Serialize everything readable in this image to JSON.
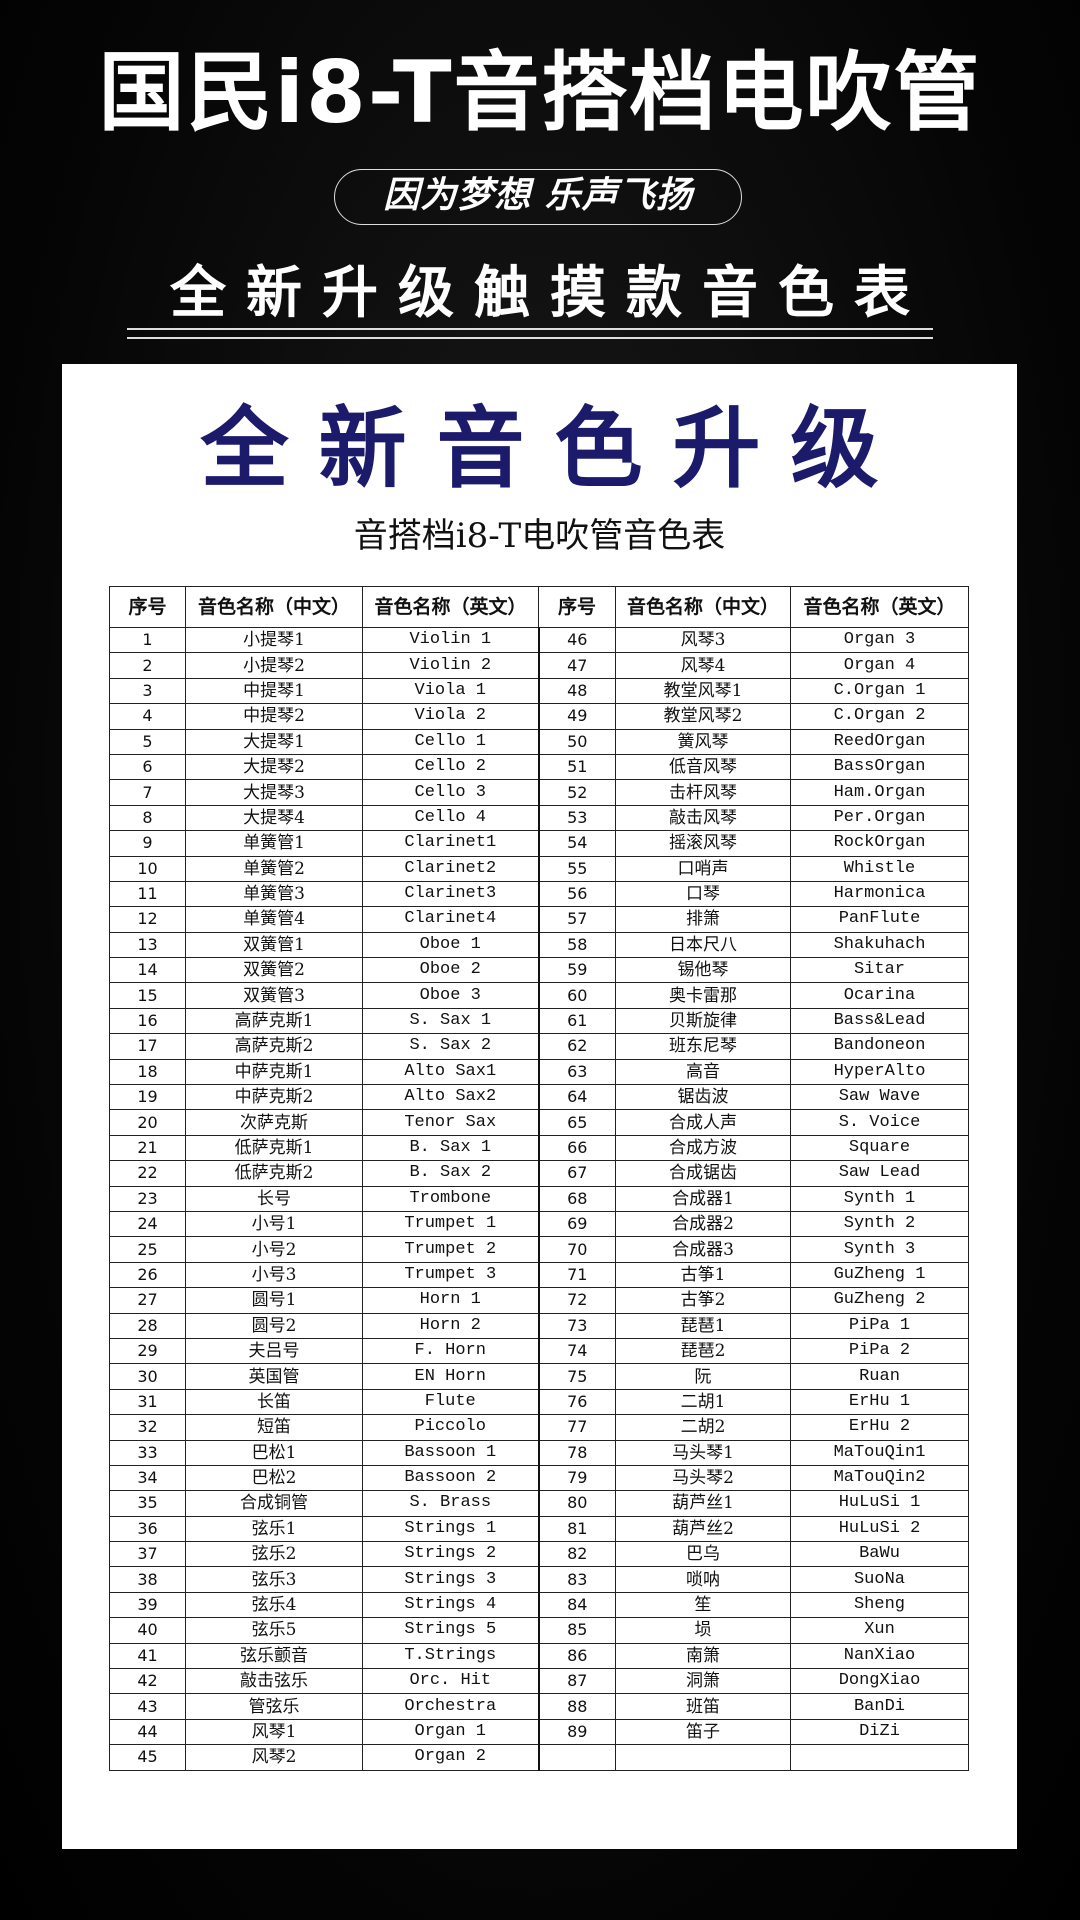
{
  "header": {
    "title": "国民i8-T音搭档电吹管",
    "slogan": "因为梦想  乐声飞扬",
    "subtitle": "全新升级触摸款音色表"
  },
  "panel": {
    "headline": "全新音色升级",
    "table_title": "音搭档i8-T电吹管音色表",
    "headline_color": "#1b1a6b"
  },
  "table": {
    "headers": [
      "序号",
      "音色名称（中文）",
      "音色名称（英文）",
      "序号",
      "音色名称（中文）",
      "音色名称（英文）"
    ]
  },
  "voices": [
    [
      "1",
      "小提琴1",
      "Violin 1"
    ],
    [
      "2",
      "小提琴2",
      "Violin 2"
    ],
    [
      "3",
      "中提琴1",
      "Viola 1"
    ],
    [
      "4",
      "中提琴2",
      "Viola 2"
    ],
    [
      "5",
      "大提琴1",
      "Cello 1"
    ],
    [
      "6",
      "大提琴2",
      "Cello 2"
    ],
    [
      "7",
      "大提琴3",
      "Cello 3"
    ],
    [
      "8",
      "大提琴4",
      "Cello 4"
    ],
    [
      "9",
      "单簧管1",
      "Clarinet1"
    ],
    [
      "10",
      "单簧管2",
      "Clarinet2"
    ],
    [
      "11",
      "单簧管3",
      "Clarinet3"
    ],
    [
      "12",
      "单簧管4",
      "Clarinet4"
    ],
    [
      "13",
      "双簧管1",
      "Oboe 1"
    ],
    [
      "14",
      "双簧管2",
      "Oboe 2"
    ],
    [
      "15",
      "双簧管3",
      "Oboe 3"
    ],
    [
      "16",
      "高萨克斯1",
      "S. Sax 1"
    ],
    [
      "17",
      "高萨克斯2",
      "S. Sax 2"
    ],
    [
      "18",
      "中萨克斯1",
      "Alto Sax1"
    ],
    [
      "19",
      "中萨克斯2",
      "Alto Sax2"
    ],
    [
      "20",
      "次萨克斯",
      "Tenor Sax"
    ],
    [
      "21",
      "低萨克斯1",
      "B. Sax 1"
    ],
    [
      "22",
      "低萨克斯2",
      "B. Sax 2"
    ],
    [
      "23",
      "长号",
      "Trombone"
    ],
    [
      "24",
      "小号1",
      "Trumpet 1"
    ],
    [
      "25",
      "小号2",
      "Trumpet 2"
    ],
    [
      "26",
      "小号3",
      "Trumpet 3"
    ],
    [
      "27",
      "圆号1",
      "Horn 1"
    ],
    [
      "28",
      "圆号2",
      "Horn 2"
    ],
    [
      "29",
      "夫吕号",
      "F. Horn"
    ],
    [
      "30",
      "英国管",
      "EN Horn"
    ],
    [
      "31",
      "长笛",
      "Flute"
    ],
    [
      "32",
      "短笛",
      "Piccolo"
    ],
    [
      "33",
      "巴松1",
      "Bassoon 1"
    ],
    [
      "34",
      "巴松2",
      "Bassoon 2"
    ],
    [
      "35",
      "合成铜管",
      "S. Brass"
    ],
    [
      "36",
      "弦乐1",
      "Strings 1"
    ],
    [
      "37",
      "弦乐2",
      "Strings 2"
    ],
    [
      "38",
      "弦乐3",
      "Strings 3"
    ],
    [
      "39",
      "弦乐4",
      "Strings 4"
    ],
    [
      "40",
      "弦乐5",
      "Strings 5"
    ],
    [
      "41",
      "弦乐颤音",
      "T.Strings"
    ],
    [
      "42",
      "敲击弦乐",
      "Orc. Hit"
    ],
    [
      "43",
      "管弦乐",
      "Orchestra"
    ],
    [
      "44",
      "风琴1",
      "Organ 1"
    ],
    [
      "45",
      "风琴2",
      "Organ 2"
    ],
    [
      "46",
      "风琴3",
      "Organ 3"
    ],
    [
      "47",
      "风琴4",
      "Organ 4"
    ],
    [
      "48",
      "教堂风琴1",
      "C.Organ 1"
    ],
    [
      "49",
      "教堂风琴2",
      "C.Organ 2"
    ],
    [
      "50",
      "簧风琴",
      "ReedOrgan"
    ],
    [
      "51",
      "低音风琴",
      "BassOrgan"
    ],
    [
      "52",
      "击杆风琴",
      "Ham.Organ"
    ],
    [
      "53",
      "敲击风琴",
      "Per.Organ"
    ],
    [
      "54",
      "摇滚风琴",
      "RockOrgan"
    ],
    [
      "55",
      "口哨声",
      "Whistle"
    ],
    [
      "56",
      "口琴",
      "Harmonica"
    ],
    [
      "57",
      "排箫",
      "PanFlute"
    ],
    [
      "58",
      "日本尺八",
      "Shakuhach"
    ],
    [
      "59",
      "锡他琴",
      "Sitar"
    ],
    [
      "60",
      "奥卡雷那",
      "Ocarina"
    ],
    [
      "61",
      "贝斯旋律",
      "Bass&Lead"
    ],
    [
      "62",
      "班东尼琴",
      "Bandoneon"
    ],
    [
      "63",
      "高音",
      "HyperAlto"
    ],
    [
      "64",
      "锯齿波",
      "Saw Wave"
    ],
    [
      "65",
      "合成人声",
      "S. Voice"
    ],
    [
      "66",
      "合成方波",
      "Square"
    ],
    [
      "67",
      "合成锯齿",
      "Saw Lead"
    ],
    [
      "68",
      "合成器1",
      "Synth 1"
    ],
    [
      "69",
      "合成器2",
      "Synth 2"
    ],
    [
      "70",
      "合成器3",
      "Synth 3"
    ],
    [
      "71",
      "古筝1",
      "GuZheng 1"
    ],
    [
      "72",
      "古筝2",
      "GuZheng 2"
    ],
    [
      "73",
      "琵琶1",
      "PiPa 1"
    ],
    [
      "74",
      "琵琶2",
      "PiPa 2"
    ],
    [
      "75",
      "阮",
      "Ruan"
    ],
    [
      "76",
      "二胡1",
      "ErHu 1"
    ],
    [
      "77",
      "二胡2",
      "ErHu 2"
    ],
    [
      "78",
      "马头琴1",
      "MaTouQin1"
    ],
    [
      "79",
      "马头琴2",
      "MaTouQin2"
    ],
    [
      "80",
      "葫芦丝1",
      "HuLuSi 1"
    ],
    [
      "81",
      "葫芦丝2",
      "HuLuSi 2"
    ],
    [
      "82",
      "巴乌",
      "BaWu"
    ],
    [
      "83",
      "唢呐",
      "SuoNa"
    ],
    [
      "84",
      "笙",
      "Sheng"
    ],
    [
      "85",
      "埙",
      "Xun"
    ],
    [
      "86",
      "南箫",
      "NanXiao"
    ],
    [
      "87",
      "洞箫",
      "DongXiao"
    ],
    [
      "88",
      "班笛",
      "BanDi"
    ],
    [
      "89",
      "笛子",
      "DiZi"
    ]
  ]
}
